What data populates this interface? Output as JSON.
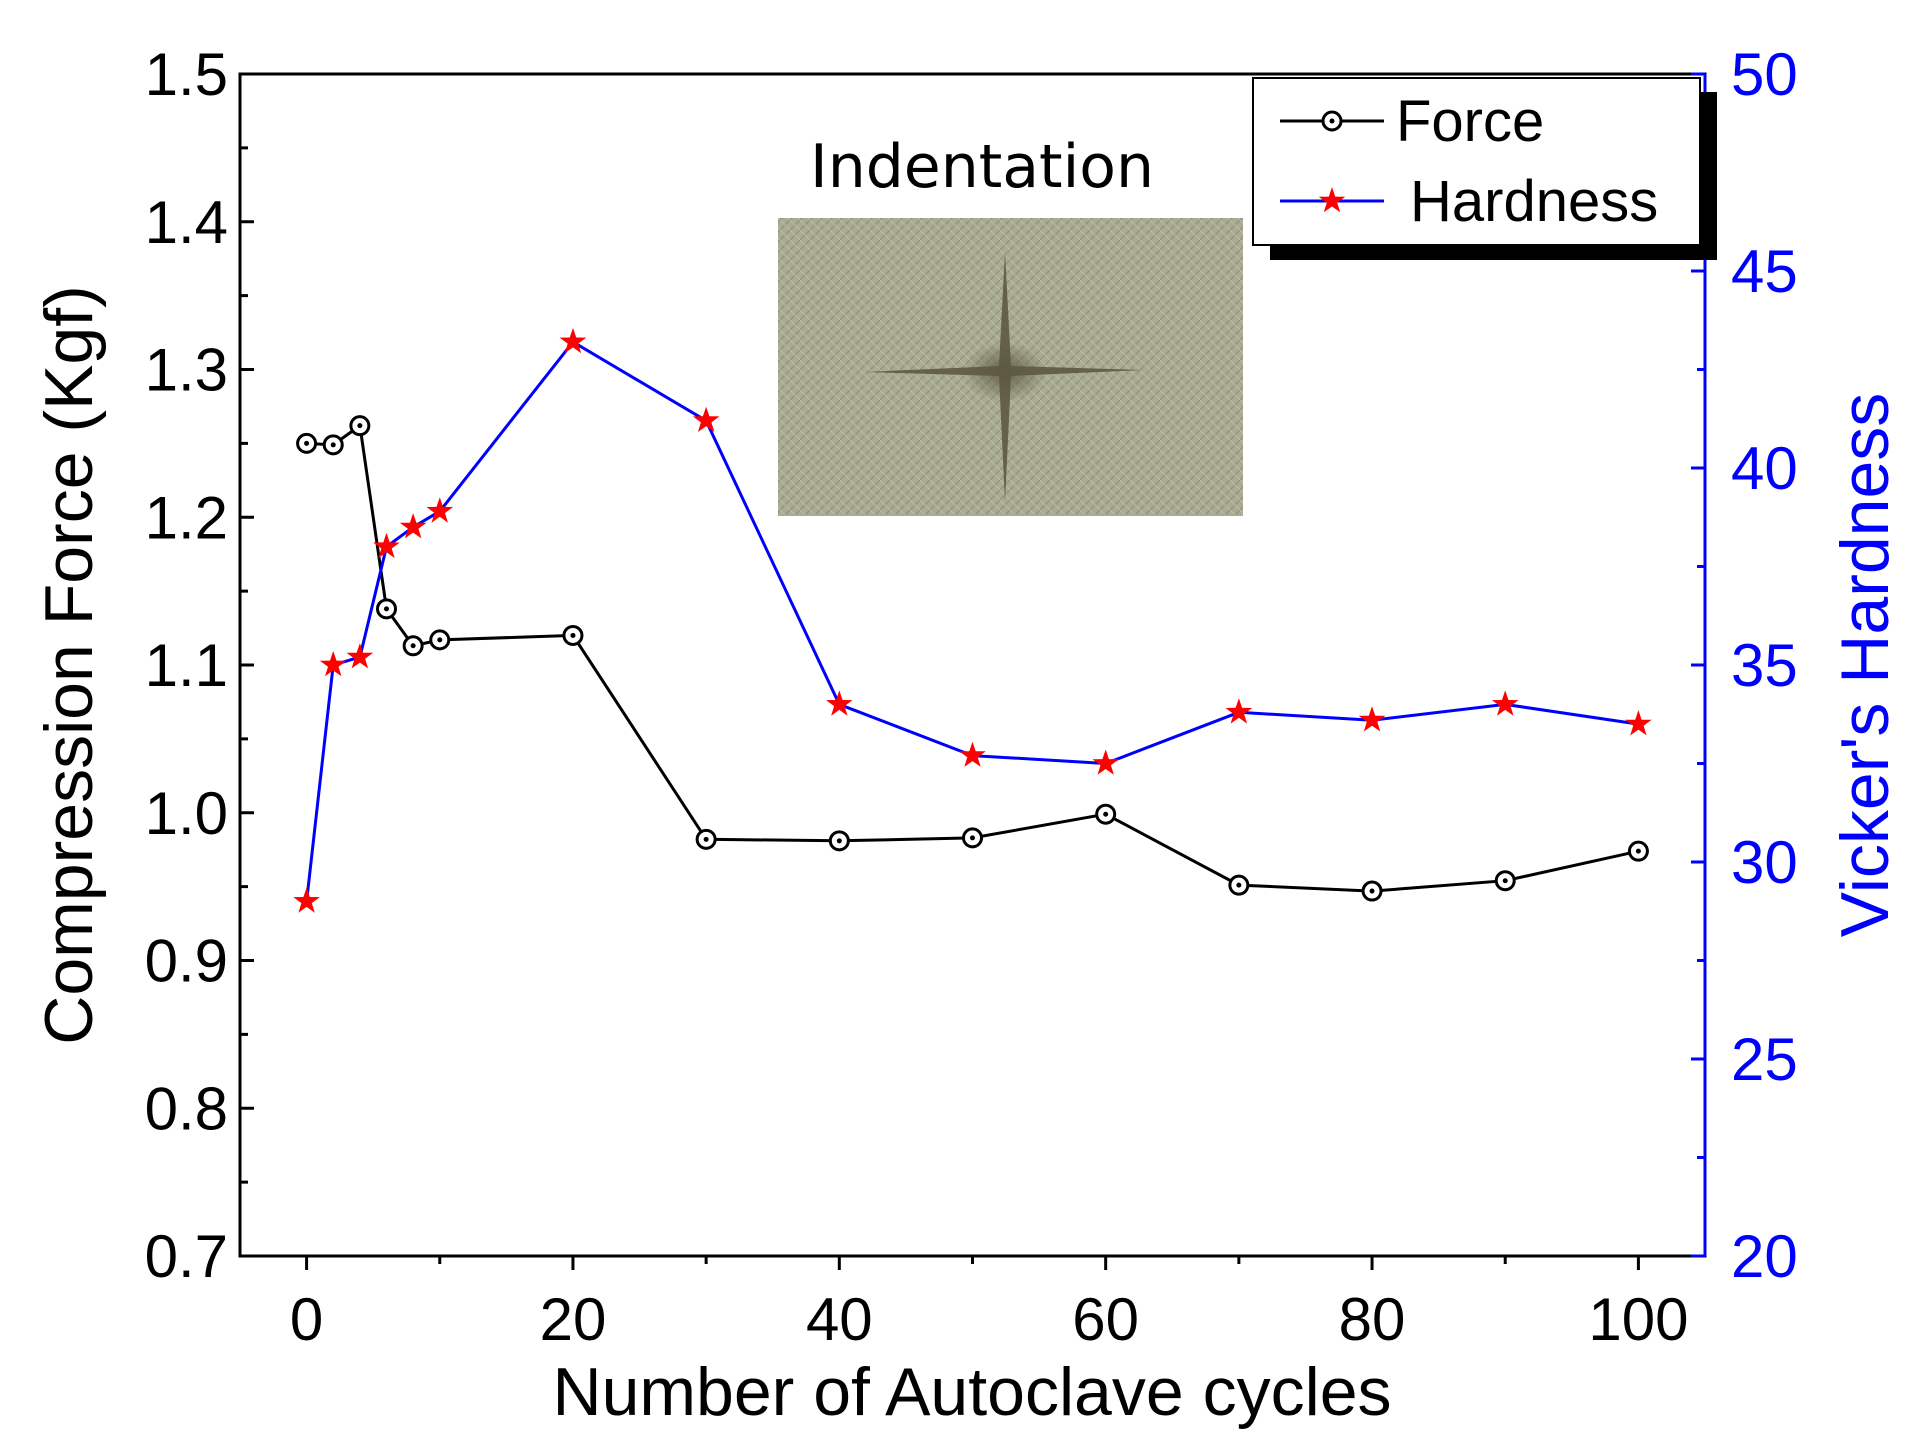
{
  "chart_data": {
    "type": "line",
    "title": "",
    "xlabel": "Number of Autoclave cycles",
    "ylabel_left": "Compression Force (Kgf)",
    "ylabel_right": "Vicker's Hardness",
    "xlim": [
      -5,
      105
    ],
    "ylim_left": [
      0.7,
      1.5
    ],
    "ylim_right": [
      20,
      50
    ],
    "x_ticks": [
      "0",
      "20",
      "40",
      "60",
      "80",
      "100"
    ],
    "y_left_ticks": [
      "0.7",
      "0.8",
      "0.9",
      "1.0",
      "1.1",
      "1.2",
      "1.3",
      "1.4",
      "1.5"
    ],
    "y_right_ticks": [
      "20",
      "25",
      "30",
      "35",
      "40",
      "45",
      "50"
    ],
    "legend_position": "top-right",
    "inset_label": "Indentation",
    "series": [
      {
        "name": "Force",
        "axis": "left",
        "color": "#000000",
        "marker": "circle-dot",
        "x": [
          0,
          2,
          4,
          6,
          8,
          10,
          20,
          30,
          40,
          50,
          60,
          70,
          80,
          90,
          100
        ],
        "values": [
          1.25,
          1.249,
          1.262,
          1.138,
          1.113,
          1.117,
          1.12,
          0.982,
          0.981,
          0.983,
          0.999,
          0.951,
          0.947,
          0.954,
          0.974
        ]
      },
      {
        "name": "Hardness",
        "axis": "right",
        "color": "#0000ff",
        "marker_color": "#ff0000",
        "marker": "star",
        "x": [
          0,
          2,
          4,
          6,
          8,
          10,
          20,
          30,
          40,
          50,
          60,
          70,
          80,
          90,
          100
        ],
        "values": [
          29.0,
          35.0,
          35.2,
          38.0,
          38.5,
          38.9,
          43.2,
          41.2,
          34.0,
          32.7,
          32.5,
          33.8,
          33.6,
          34.0,
          33.5
        ]
      }
    ]
  }
}
